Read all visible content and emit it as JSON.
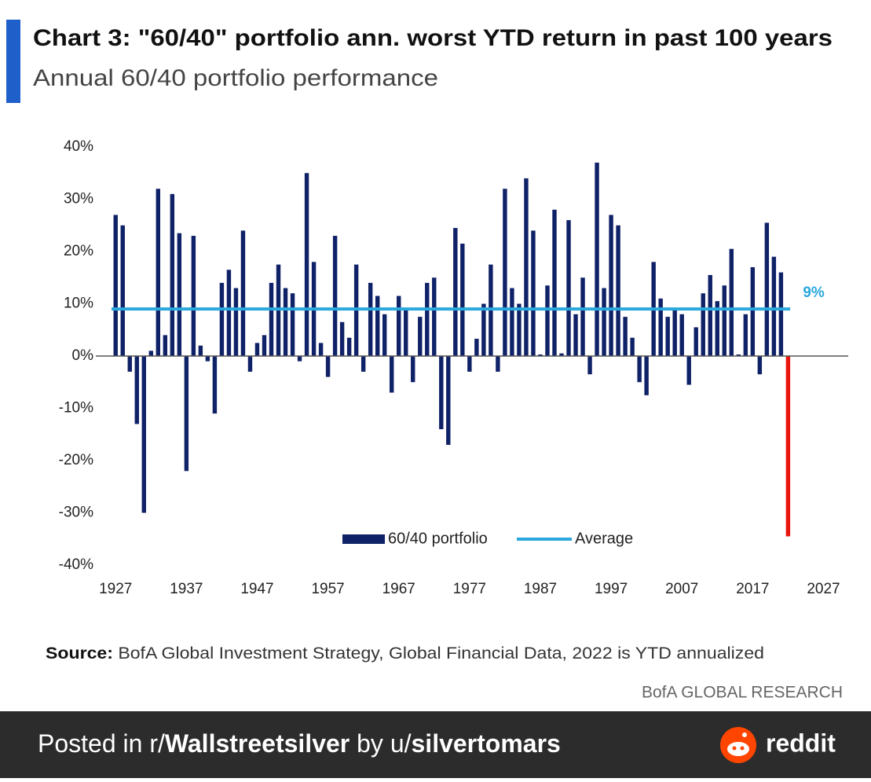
{
  "chart_data": {
    "type": "bar",
    "title": "Chart 3: \"60/40\" portfolio ann. worst YTD return in past 100 years",
    "subtitle": "Annual 60/40 portfolio performance",
    "x": [
      1927,
      1928,
      1929,
      1930,
      1931,
      1932,
      1933,
      1934,
      1935,
      1936,
      1937,
      1938,
      1939,
      1940,
      1941,
      1942,
      1943,
      1944,
      1945,
      1946,
      1947,
      1948,
      1949,
      1950,
      1951,
      1952,
      1953,
      1954,
      1955,
      1956,
      1957,
      1958,
      1959,
      1960,
      1961,
      1962,
      1963,
      1964,
      1965,
      1966,
      1967,
      1968,
      1969,
      1970,
      1971,
      1972,
      1973,
      1974,
      1975,
      1976,
      1977,
      1978,
      1979,
      1980,
      1981,
      1982,
      1983,
      1984,
      1985,
      1986,
      1987,
      1988,
      1989,
      1990,
      1991,
      1992,
      1993,
      1994,
      1995,
      1996,
      1997,
      1998,
      1999,
      2000,
      2001,
      2002,
      2003,
      2004,
      2005,
      2006,
      2007,
      2008,
      2009,
      2010,
      2011,
      2012,
      2013,
      2014,
      2015,
      2016,
      2017,
      2018,
      2019,
      2020,
      2021,
      2022
    ],
    "series": [
      {
        "name": "60/40 portfolio",
        "color": "#0f2167",
        "values": [
          27,
          25,
          -3,
          -13,
          -30,
          1,
          32,
          4,
          31,
          23.5,
          -22,
          23,
          2,
          -1,
          -11,
          14,
          16.5,
          13,
          24,
          -3,
          2.5,
          4,
          14,
          17.5,
          13,
          12,
          -1,
          35,
          18,
          2.5,
          -4,
          23,
          6.5,
          3.5,
          17.5,
          -3,
          14,
          11.5,
          8,
          -7,
          11.5,
          9,
          -5,
          7.5,
          14,
          15,
          -14,
          -17,
          24.5,
          21.5,
          -3,
          3.3,
          10,
          17.5,
          -3,
          32,
          13,
          10,
          34,
          24,
          0.3,
          13.5,
          28,
          0.5,
          26,
          8,
          15,
          -3.5,
          37,
          13,
          27,
          25,
          7.5,
          3.5,
          -5,
          -7.5,
          18,
          11,
          7.5,
          9,
          8,
          -5.5,
          5.5,
          12,
          15.5,
          10.5,
          13.5,
          20.5,
          0.3,
          8,
          17,
          -3.5,
          25.5,
          19,
          16,
          -34.5
        ],
        "colors": [
          "#0f2167",
          "#0f2167",
          "#0f2167",
          "#0f2167",
          "#0f2167",
          "#0f2167",
          "#0f2167",
          "#0f2167",
          "#0f2167",
          "#0f2167",
          "#0f2167",
          "#0f2167",
          "#0f2167",
          "#0f2167",
          "#0f2167",
          "#0f2167",
          "#0f2167",
          "#0f2167",
          "#0f2167",
          "#0f2167",
          "#0f2167",
          "#0f2167",
          "#0f2167",
          "#0f2167",
          "#0f2167",
          "#0f2167",
          "#0f2167",
          "#0f2167",
          "#0f2167",
          "#0f2167",
          "#0f2167",
          "#0f2167",
          "#0f2167",
          "#0f2167",
          "#0f2167",
          "#0f2167",
          "#0f2167",
          "#0f2167",
          "#0f2167",
          "#0f2167",
          "#0f2167",
          "#0f2167",
          "#0f2167",
          "#0f2167",
          "#0f2167",
          "#0f2167",
          "#0f2167",
          "#0f2167",
          "#0f2167",
          "#0f2167",
          "#0f2167",
          "#0f2167",
          "#0f2167",
          "#0f2167",
          "#0f2167",
          "#0f2167",
          "#0f2167",
          "#0f2167",
          "#0f2167",
          "#0f2167",
          "#0f2167",
          "#0f2167",
          "#0f2167",
          "#0f2167",
          "#0f2167",
          "#0f2167",
          "#0f2167",
          "#0f2167",
          "#0f2167",
          "#0f2167",
          "#0f2167",
          "#0f2167",
          "#0f2167",
          "#0f2167",
          "#0f2167",
          "#0f2167",
          "#0f2167",
          "#0f2167",
          "#0f2167",
          "#0f2167",
          "#0f2167",
          "#0f2167",
          "#0f2167",
          "#0f2167",
          "#0f2167",
          "#0f2167",
          "#0f2167",
          "#0f2167",
          "#0f2167",
          "#0f2167",
          "#0f2167",
          "#0f2167",
          "#0f2167",
          "#0f2167",
          "#0f2167",
          "#e8150d"
        ]
      }
    ],
    "average": {
      "name": "Average",
      "value": 9,
      "label": "9%",
      "color": "#2aa8dc"
    },
    "xlim": [
      1924.2,
      2030.5
    ],
    "xticks": [
      1927,
      1937,
      1947,
      1957,
      1967,
      1977,
      1987,
      1997,
      2007,
      2017,
      2027
    ],
    "ylim": [
      -40,
      40
    ],
    "yticks": [
      {
        "value": 40,
        "label": "40%"
      },
      {
        "value": 30,
        "label": "30%"
      },
      {
        "value": 20,
        "label": "20%"
      },
      {
        "value": 10,
        "label": "10%"
      },
      {
        "value": 0,
        "label": "0%"
      },
      {
        "value": -10,
        "label": "-10%"
      },
      {
        "value": -20,
        "label": "-20%"
      },
      {
        "value": -30,
        "label": "-30%"
      },
      {
        "value": -40,
        "label": "-40%"
      }
    ],
    "grid": false,
    "legend": "bottom",
    "source_label": "Source:",
    "source": "BofA Global Investment Strategy, Global Financial Data, 2022 is YTD annualized",
    "brand": "BofA GLOBAL RESEARCH"
  },
  "footer": {
    "prefix": "Posted in r/",
    "subreddit": "Wallstreetsilver",
    "middle": " by u/",
    "user": "silvertomars",
    "logo": "reddit"
  }
}
